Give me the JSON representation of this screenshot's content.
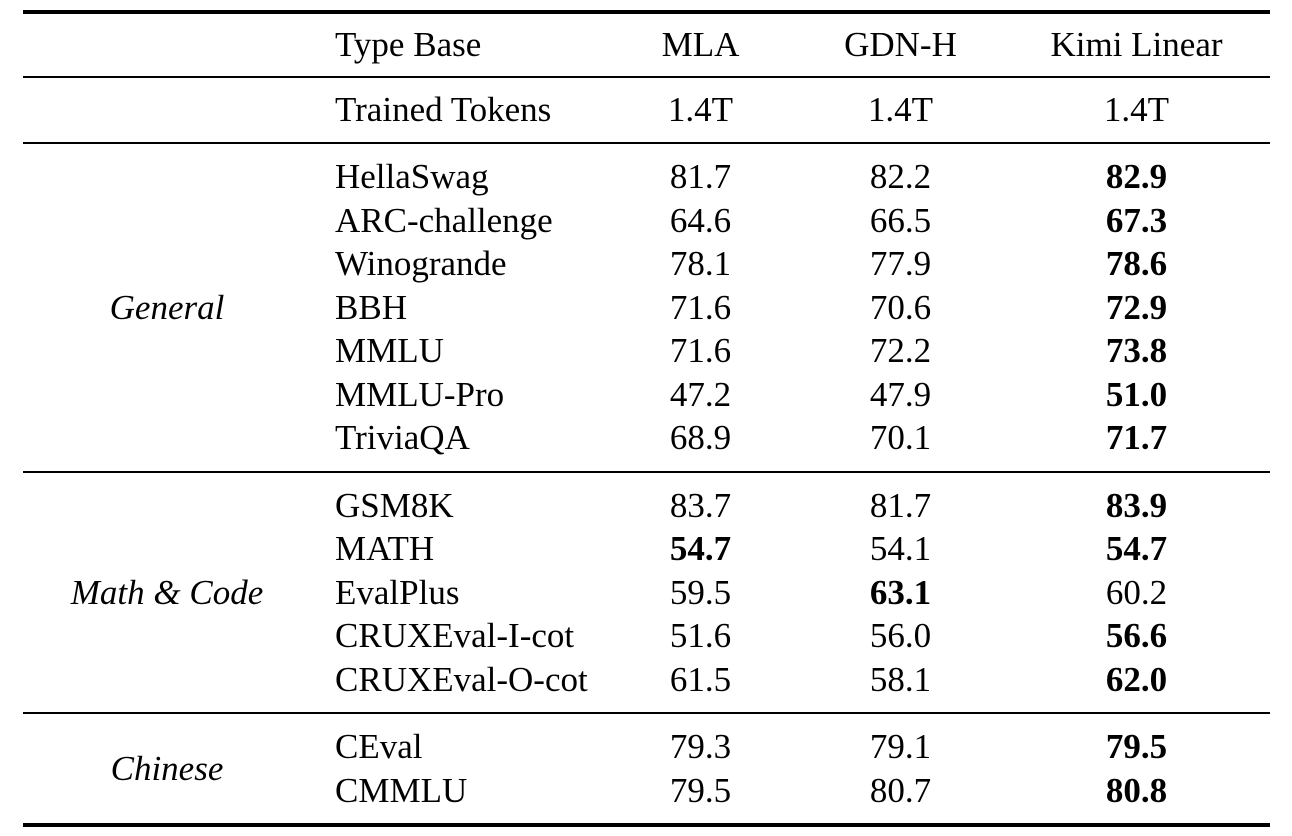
{
  "colors": {
    "background": "#ffffff",
    "text": "#000000",
    "rule": "#000000"
  },
  "table": {
    "header": {
      "type_col": "Type Base",
      "model_cols": [
        "MLA",
        "GDN-H",
        "Kimi Linear"
      ]
    },
    "trained_tokens": {
      "label": "Trained Tokens",
      "values": [
        "1.4T",
        "1.4T",
        "1.4T"
      ]
    },
    "sections": [
      {
        "group": "General",
        "rows": [
          {
            "name": "HellaSwag",
            "cells": [
              {
                "text": "81.7",
                "bold": false
              },
              {
                "text": "82.2",
                "bold": false
              },
              {
                "text": "82.9",
                "bold": true
              }
            ]
          },
          {
            "name": "ARC-challenge",
            "cells": [
              {
                "text": "64.6",
                "bold": false
              },
              {
                "text": "66.5",
                "bold": false
              },
              {
                "text": "67.3",
                "bold": true
              }
            ]
          },
          {
            "name": "Winogrande",
            "cells": [
              {
                "text": "78.1",
                "bold": false
              },
              {
                "text": "77.9",
                "bold": false
              },
              {
                "text": "78.6",
                "bold": true
              }
            ]
          },
          {
            "name": "BBH",
            "cells": [
              {
                "text": "71.6",
                "bold": false
              },
              {
                "text": "70.6",
                "bold": false
              },
              {
                "text": "72.9",
                "bold": true
              }
            ]
          },
          {
            "name": "MMLU",
            "cells": [
              {
                "text": "71.6",
                "bold": false
              },
              {
                "text": "72.2",
                "bold": false
              },
              {
                "text": "73.8",
                "bold": true
              }
            ]
          },
          {
            "name": "MMLU-Pro",
            "cells": [
              {
                "text": "47.2",
                "bold": false
              },
              {
                "text": "47.9",
                "bold": false
              },
              {
                "text": "51.0",
                "bold": true
              }
            ]
          },
          {
            "name": "TriviaQA",
            "cells": [
              {
                "text": "68.9",
                "bold": false
              },
              {
                "text": "70.1",
                "bold": false
              },
              {
                "text": "71.7",
                "bold": true
              }
            ]
          }
        ]
      },
      {
        "group": "Math & Code",
        "rows": [
          {
            "name": "GSM8K",
            "cells": [
              {
                "text": "83.7",
                "bold": false
              },
              {
                "text": "81.7",
                "bold": false
              },
              {
                "text": "83.9",
                "bold": true
              }
            ]
          },
          {
            "name": "MATH",
            "cells": [
              {
                "text": "54.7",
                "bold": true
              },
              {
                "text": "54.1",
                "bold": false
              },
              {
                "text": "54.7",
                "bold": true
              }
            ]
          },
          {
            "name": "EvalPlus",
            "cells": [
              {
                "text": "59.5",
                "bold": false
              },
              {
                "text": "63.1",
                "bold": true
              },
              {
                "text": "60.2",
                "bold": false
              }
            ]
          },
          {
            "name": "CRUXEval-I-cot",
            "cells": [
              {
                "text": "51.6",
                "bold": false
              },
              {
                "text": "56.0",
                "bold": false
              },
              {
                "text": "56.6",
                "bold": true
              }
            ]
          },
          {
            "name": "CRUXEval-O-cot",
            "cells": [
              {
                "text": "61.5",
                "bold": false
              },
              {
                "text": "58.1",
                "bold": false
              },
              {
                "text": "62.0",
                "bold": true
              }
            ]
          }
        ]
      },
      {
        "group": "Chinese",
        "rows": [
          {
            "name": "CEval",
            "cells": [
              {
                "text": "79.3",
                "bold": false
              },
              {
                "text": "79.1",
                "bold": false
              },
              {
                "text": "79.5",
                "bold": true
              }
            ]
          },
          {
            "name": "CMMLU",
            "cells": [
              {
                "text": "79.5",
                "bold": false
              },
              {
                "text": "80.7",
                "bold": false
              },
              {
                "text": "80.8",
                "bold": true
              }
            ]
          }
        ]
      }
    ]
  }
}
